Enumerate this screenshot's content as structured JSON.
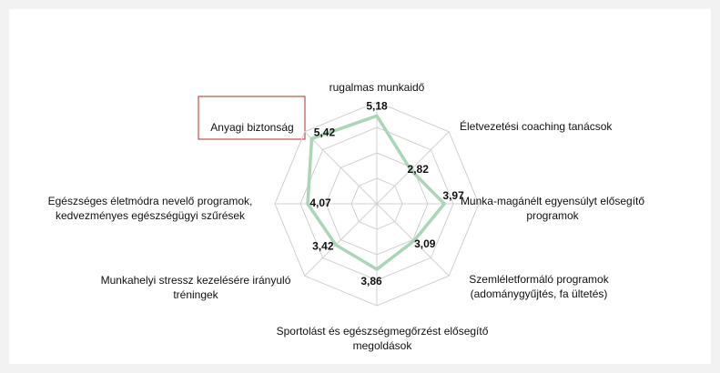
{
  "chart_data": {
    "type": "radar",
    "categories": [
      [
        "rugalmas munkaidő"
      ],
      [
        "Életvezetési coaching tanácsok"
      ],
      [
        "Munka-magánélt egyensúlyt elősegítő",
        "programok"
      ],
      [
        "Szemléletformáló programok",
        "(adománygyűjtés, fa ültetés)"
      ],
      [
        "Sportolást és egészségmegőrzést elősegítő",
        "megoldások"
      ],
      [
        "Munkahelyi stressz kezelésére irányuló",
        "tréningek"
      ],
      [
        "Egészséges életmódra nevelő programok,",
        "kedvezményes egészségügyi szűrések"
      ],
      [
        "Anyagi biztonság"
      ]
    ],
    "values": [
      5.18,
      2.82,
      3.97,
      3.09,
      3.86,
      3.42,
      4.07,
      5.42
    ],
    "value_labels": [
      "5,18",
      "2,82",
      "3,97",
      "3,09",
      "3,86",
      "3,42",
      "4,07",
      "5,42"
    ],
    "color": "#a9d6b6",
    "rlim": [
      0,
      6
    ],
    "rticks": [
      1.5,
      3,
      4.5,
      6
    ],
    "grid": true
  }
}
